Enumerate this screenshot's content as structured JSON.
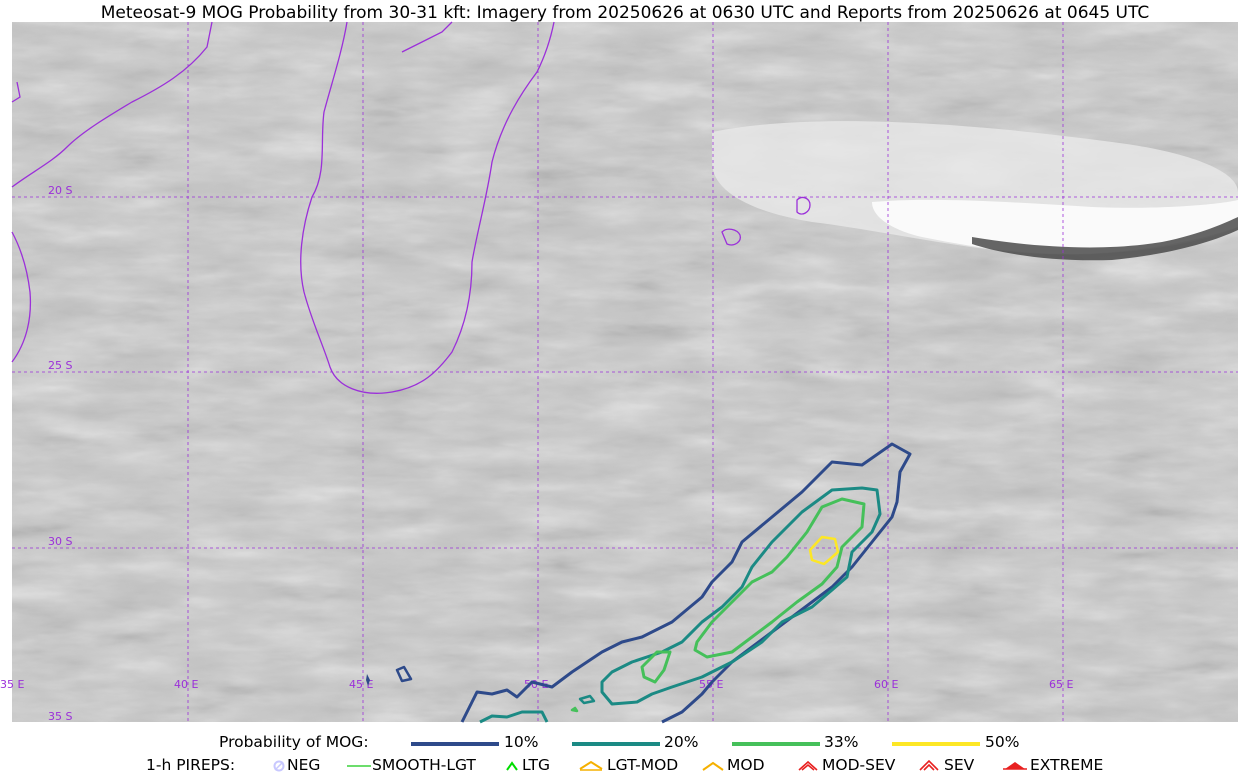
{
  "title": "Meteosat-9 MOG Probability from 30-31 kft: Imagery from 20250626 at 0630 UTC and Reports from 20250626 at 0645 UTC",
  "map": {
    "lat_labels": [
      "20 S",
      "25 S",
      "30 S",
      "35 S"
    ],
    "lon_labels": [
      "35 E",
      "40 E",
      "45 E",
      "50 E",
      "55 E",
      "60 E",
      "65 E"
    ],
    "gridline_color": "#9b30d9",
    "coastline_color": "#9b30d9"
  },
  "legend": {
    "probability_title": "Probability of MOG:",
    "probability_levels": [
      {
        "label": "10%",
        "color": "#2e4a8a"
      },
      {
        "label": "20%",
        "color": "#1b8a84"
      },
      {
        "label": "33%",
        "color": "#45c05a"
      },
      {
        "label": "50%",
        "color": "#fde725"
      }
    ],
    "pireps_title": "1-h PIREPS:",
    "pireps": [
      {
        "label": "NEG",
        "color": "#c8c8ff",
        "icon": "neg-circle-icon"
      },
      {
        "label": "SMOOTH-LGT",
        "color": "#3cd23c",
        "icon": "smooth-line-icon"
      },
      {
        "label": "LTG",
        "color": "#00dd00",
        "icon": "ltg-caret-icon"
      },
      {
        "label": "LGT-MOD",
        "color": "#f5b000",
        "icon": "lgt-mod-caret-icon"
      },
      {
        "label": "MOD",
        "color": "#f5b000",
        "icon": "mod-caret-icon"
      },
      {
        "label": "MOD-SEV",
        "color": "#e82020",
        "icon": "mod-sev-caret-icon"
      },
      {
        "label": "SEV",
        "color": "#e82020",
        "icon": "sev-caret-icon"
      },
      {
        "label": "EXTREME",
        "color": "#e82020",
        "icon": "extreme-caret-icon"
      }
    ]
  }
}
